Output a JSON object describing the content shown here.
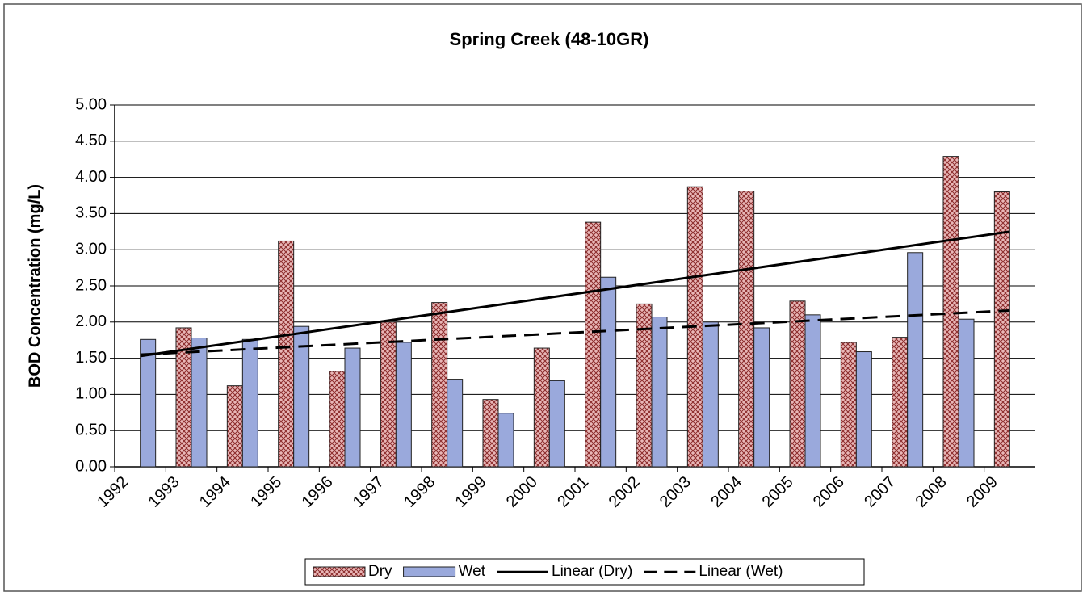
{
  "chart_data": {
    "type": "bar",
    "title": "Spring Creek (48-10GR)",
    "y_label": "BOD Concentration (mg/L)",
    "categories": [
      "1992",
      "1993",
      "1994",
      "1995",
      "1996",
      "1997",
      "1998",
      "1999",
      "2000",
      "2001",
      "2002",
      "2003",
      "2004",
      "2005",
      "2006",
      "2007",
      "2008",
      "2009"
    ],
    "series": [
      {
        "name": "Dry",
        "color": "#e9b7b7",
        "pattern": "crosshatch",
        "values": [
          null,
          1.92,
          1.12,
          3.12,
          1.32,
          2.0,
          2.27,
          0.93,
          1.64,
          3.38,
          2.25,
          3.87,
          3.81,
          2.29,
          1.72,
          1.79,
          4.29,
          3.8
        ]
      },
      {
        "name": "Wet",
        "color": "#9aa9dc",
        "values": [
          1.76,
          1.78,
          1.76,
          1.94,
          1.64,
          1.72,
          1.21,
          0.74,
          1.19,
          2.62,
          2.07,
          2.0,
          1.92,
          2.1,
          1.59,
          2.96,
          2.04,
          null
        ]
      }
    ],
    "trendlines": [
      {
        "name": "Linear (Dry)",
        "color": "#000000",
        "dash": false,
        "values": [
          1.53,
          3.25
        ]
      },
      {
        "name": "Linear (Wet)",
        "color": "#000000",
        "dash": true,
        "values": [
          1.55,
          2.16
        ]
      }
    ],
    "ylim": [
      0,
      5
    ],
    "yticks": [
      {
        "value": 0,
        "label": "0.00"
      },
      {
        "value": 0.5,
        "label": "0.50"
      },
      {
        "value": 1,
        "label": "1.00"
      },
      {
        "value": 1.5,
        "label": "1.50"
      },
      {
        "value": 2,
        "label": "2.00"
      },
      {
        "value": 2.5,
        "label": "2.50"
      },
      {
        "value": 3,
        "label": "3.00"
      },
      {
        "value": 3.5,
        "label": "3.50"
      },
      {
        "value": 4,
        "label": "4.00"
      },
      {
        "value": 4.5,
        "label": "4.50"
      },
      {
        "value": 5,
        "label": "5.00"
      }
    ],
    "grid": true,
    "legend": "bottom"
  }
}
